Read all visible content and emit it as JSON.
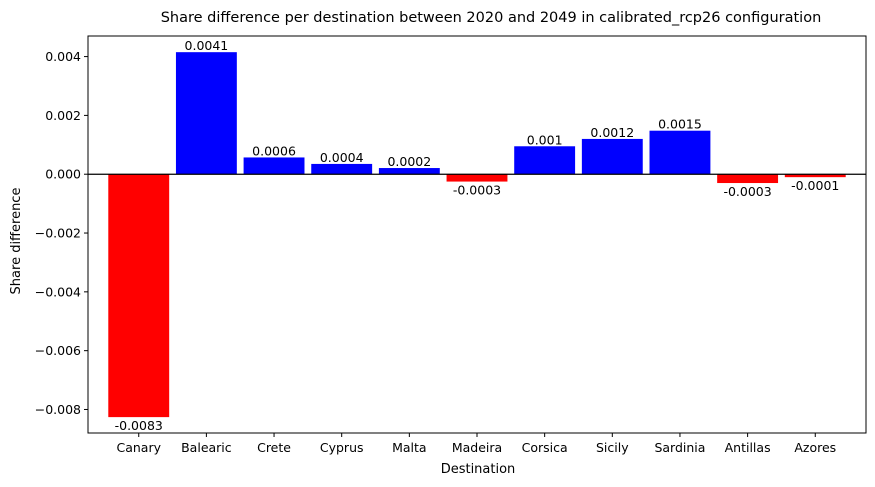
{
  "chart_data": {
    "type": "bar",
    "title": "Share difference per destination between 2020 and 2049 in calibrated_rcp26 configuration",
    "xlabel": "Destination",
    "ylabel": "Share difference",
    "categories": [
      "Canary",
      "Balearic",
      "Crete",
      "Cyprus",
      "Malta",
      "Madeira",
      "Corsica",
      "Sicily",
      "Sardinia",
      "Antillas",
      "Azores"
    ],
    "values": [
      -0.00826,
      0.00415,
      0.00057,
      0.00035,
      0.00021,
      -0.00025,
      0.00095,
      0.0012,
      0.00148,
      -0.0003,
      -0.0001
    ],
    "data_labels": [
      "-0.0083",
      "0.0041",
      "0.0006",
      "0.0004",
      "0.0002",
      "-0.0003",
      "0.001",
      "0.0012",
      "0.0015",
      "-0.0003",
      "-0.0001"
    ],
    "ylim": [
      -0.0088,
      0.0047
    ],
    "yticks": [
      0.004,
      0.002,
      0.0,
      -0.002,
      -0.004,
      -0.006,
      -0.008
    ],
    "ytick_labels": [
      "0.004",
      "0.002",
      "0.000",
      "−0.002",
      "−0.004",
      "−0.006",
      "−0.008"
    ],
    "colors": {
      "positive": "#0000ff",
      "negative": "#ff0000",
      "zero_line": "#000000"
    },
    "grid": false,
    "legend": "none"
  }
}
